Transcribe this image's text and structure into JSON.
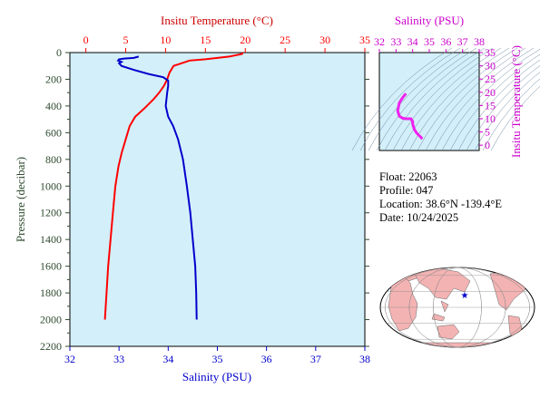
{
  "profile_info": {
    "float": "Float:  22063",
    "profile": "Profile:  047",
    "location": "Location:  38.6°N  -139.4°E",
    "date": "Date:  10/24/2025"
  },
  "colors": {
    "panel_bg": "#d3effa",
    "temperature": "#ff0000",
    "salinity": "#0000cc",
    "pressure_axis": "#2e4a2e",
    "ts_axis": "#cc00cc",
    "ts_line": "#ee22ee",
    "land": "#f4b3b3",
    "ocean": "#ffffff"
  },
  "chart_data": [
    {
      "type": "line",
      "top_axis_label": "Insitu Temperature (°C)",
      "bottom_axis_label": "Salinity (PSU)",
      "left_axis_label": "Pressure (decibar)",
      "temperature_ticks": [
        0,
        5,
        10,
        15,
        20,
        25,
        30,
        35
      ],
      "salinity_ticks": [
        32,
        33,
        34,
        35,
        36,
        37,
        38
      ],
      "pressure_ticks": [
        0,
        200,
        400,
        600,
        800,
        1000,
        1200,
        1400,
        1600,
        1800,
        2000,
        2200
      ],
      "temperature_range": [
        -2,
        35
      ],
      "salinity_range": [
        32,
        38
      ],
      "pressure_range": [
        0,
        2200
      ],
      "series": [
        {
          "variable": "temperature",
          "points": [
            [
              19.7,
              0
            ],
            [
              19.6,
              10
            ],
            [
              18.0,
              30
            ],
            [
              15.0,
              50
            ],
            [
              13.0,
              60
            ],
            [
              12.0,
              80
            ],
            [
              11.0,
              100
            ],
            [
              10.5,
              150
            ],
            [
              10.2,
              200
            ],
            [
              9.8,
              250
            ],
            [
              9.2,
              300
            ],
            [
              8.5,
              350
            ],
            [
              7.3,
              420
            ],
            [
              6.2,
              480
            ],
            [
              5.5,
              550
            ],
            [
              5.0,
              650
            ],
            [
              4.5,
              750
            ],
            [
              4.1,
              850
            ],
            [
              3.7,
              1000
            ],
            [
              3.4,
              1200
            ],
            [
              3.1,
              1400
            ],
            [
              2.8,
              1600
            ],
            [
              2.6,
              1800
            ],
            [
              2.4,
              2000
            ]
          ]
        },
        {
          "variable": "salinity",
          "points": [
            [
              33.4,
              30
            ],
            [
              33.3,
              40
            ],
            [
              33.1,
              45
            ],
            [
              33.0,
              50
            ],
            [
              32.98,
              60
            ],
            [
              33.05,
              70
            ],
            [
              33.0,
              80
            ],
            [
              33.05,
              100
            ],
            [
              33.3,
              130
            ],
            [
              33.6,
              160
            ],
            [
              33.9,
              185
            ],
            [
              34.0,
              210
            ],
            [
              34.0,
              250
            ],
            [
              33.98,
              300
            ],
            [
              33.95,
              400
            ],
            [
              34.0,
              480
            ],
            [
              34.1,
              550
            ],
            [
              34.2,
              650
            ],
            [
              34.3,
              800
            ],
            [
              34.38,
              1000
            ],
            [
              34.45,
              1200
            ],
            [
              34.5,
              1400
            ],
            [
              34.55,
              1600
            ],
            [
              34.57,
              1800
            ],
            [
              34.58,
              2000
            ]
          ]
        }
      ]
    },
    {
      "type": "scatter",
      "top_axis_label": "Salinity (PSU)",
      "right_axis_label": "Insitu Temperature (°C)",
      "salinity_ticks": [
        32,
        33,
        34,
        35,
        36,
        37,
        38
      ],
      "temperature_ticks": [
        0,
        5,
        10,
        15,
        20,
        25,
        30,
        35
      ],
      "salinity_range": [
        32,
        38
      ],
      "temperature_range": [
        -2,
        35
      ],
      "points": [
        [
          33.6,
          19.5
        ],
        [
          33.4,
          18.0
        ],
        [
          33.2,
          16.0
        ],
        [
          33.1,
          13.0
        ],
        [
          33.2,
          11.0
        ],
        [
          33.4,
          10.2
        ],
        [
          33.6,
          10.0
        ],
        [
          33.9,
          10.0
        ],
        [
          34.0,
          9.0
        ],
        [
          34.0,
          8.0
        ],
        [
          34.05,
          7.0
        ],
        [
          34.1,
          6.0
        ],
        [
          34.2,
          5.0
        ],
        [
          34.3,
          4.2
        ],
        [
          34.4,
          3.6
        ],
        [
          34.5,
          3.0
        ],
        [
          34.55,
          2.6
        ],
        [
          34.58,
          2.4
        ]
      ]
    },
    {
      "type": "map",
      "marker_location": [
        38.6,
        -139.4
      ]
    }
  ]
}
